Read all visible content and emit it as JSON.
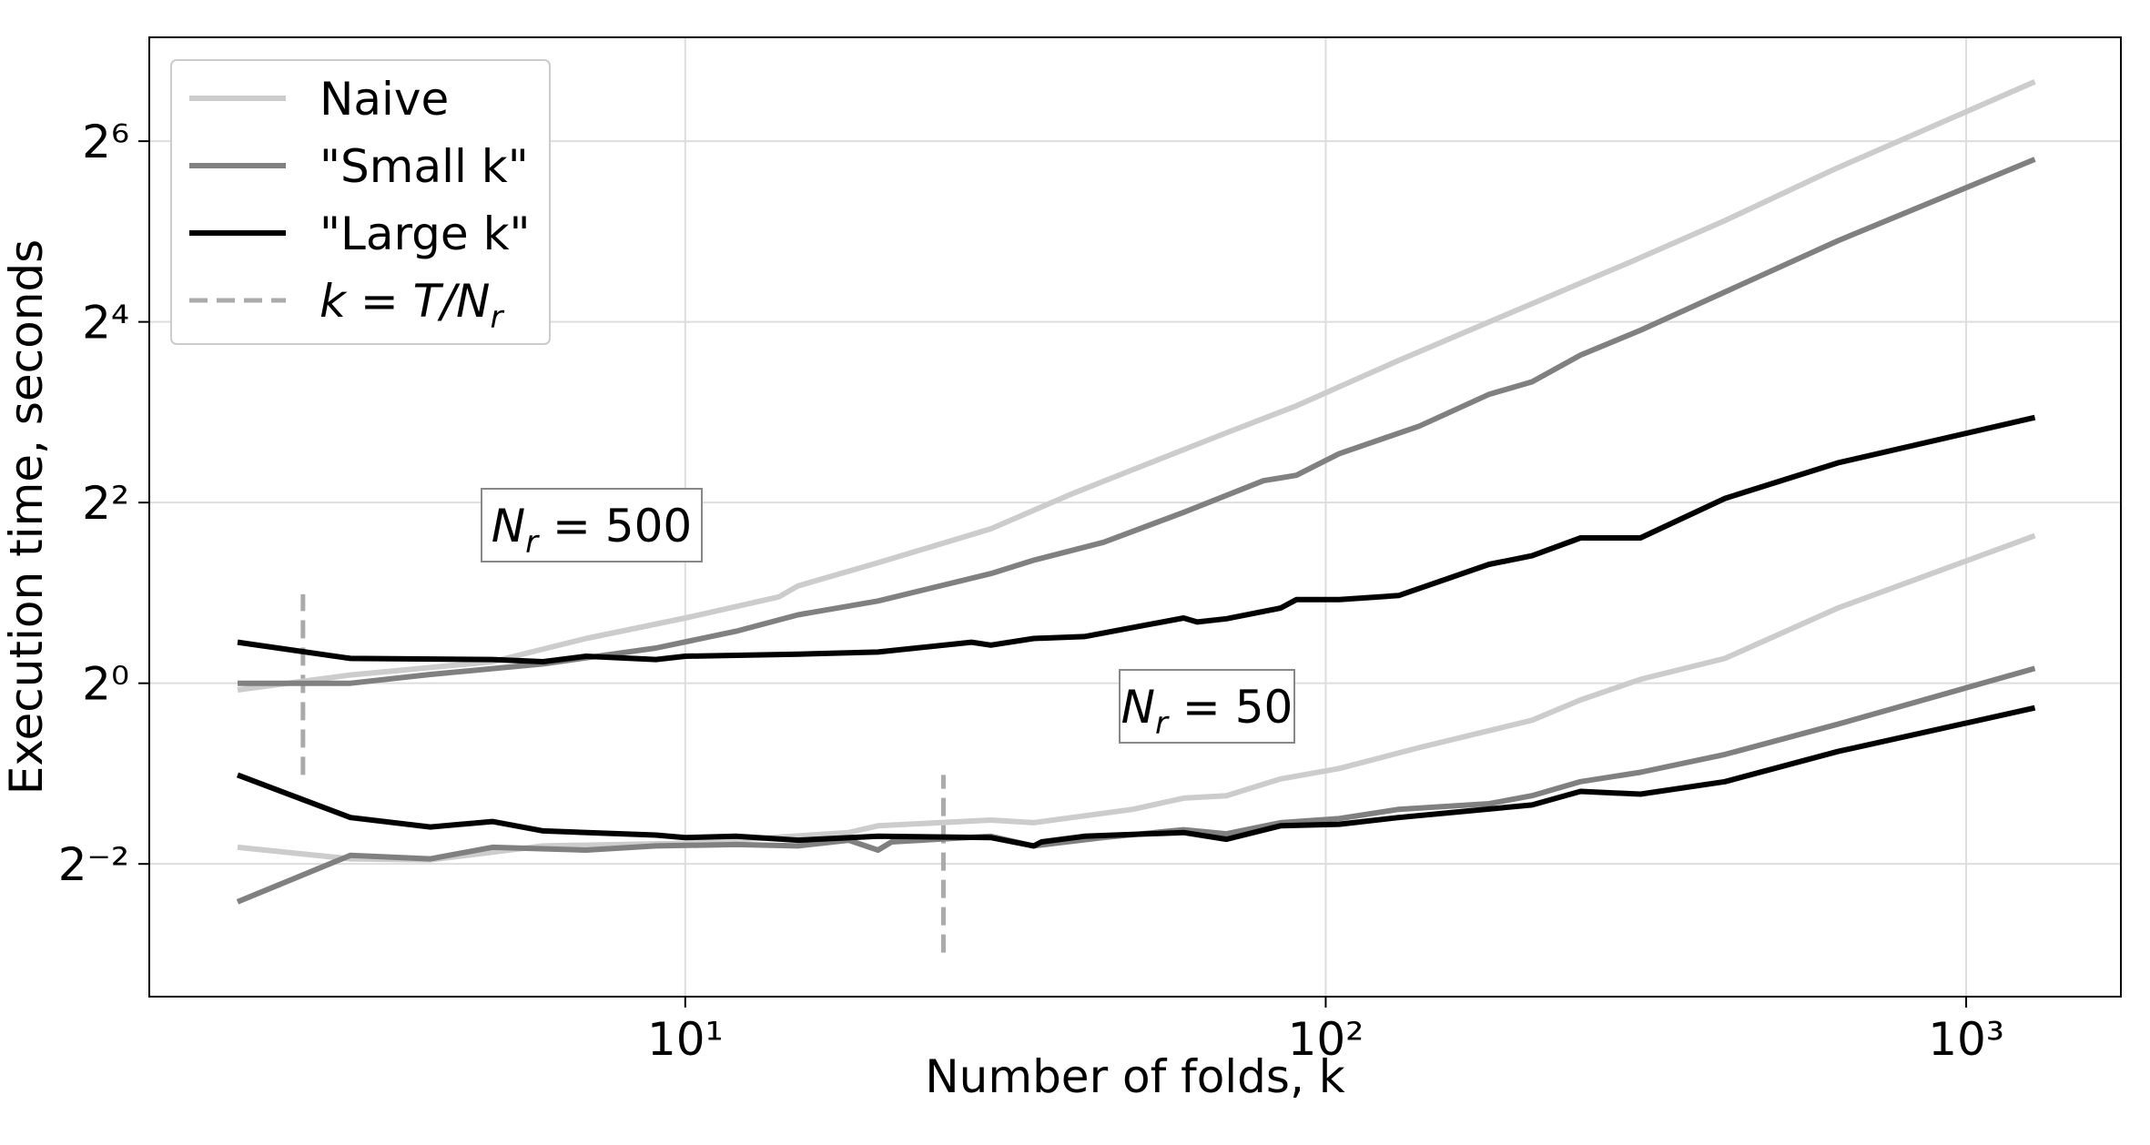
{
  "chart_data": {
    "type": "line",
    "xlabel": "Number of folds, k",
    "ylabel": "Execution time, seconds",
    "xscale": "log",
    "yscale": "log",
    "xlim": [
      1.456,
      1744
    ],
    "ylim": [
      0.0903,
      142
    ],
    "xticks": [
      {
        "value": 10,
        "label": "10¹"
      },
      {
        "value": 100,
        "label": "10²"
      },
      {
        "value": 1000,
        "label": "10³"
      }
    ],
    "yticks": [
      {
        "value": 0.25,
        "label": "2⁻²"
      },
      {
        "value": 1,
        "label": "2⁰"
      },
      {
        "value": 4,
        "label": "2²"
      },
      {
        "value": 16,
        "label": "2⁴"
      },
      {
        "value": 64,
        "label": "2⁶"
      }
    ],
    "grid": true,
    "legend": "upper left",
    "series": [
      {
        "name": "Naive",
        "color": "#cccccc",
        "x": [
          2,
          3,
          5,
          6,
          7,
          10,
          14,
          15,
          20,
          30,
          40,
          50,
          70,
          90,
          130,
          200,
          300,
          420,
          620,
          1280
        ],
        "values": [
          0.95,
          1.065,
          1.18,
          1.3,
          1.41,
          1.65,
          1.94,
          2.11,
          2.52,
          3.27,
          4.26,
          5.15,
          6.83,
          8.4,
          11.9,
          17.6,
          25.4,
          34.8,
          51.4,
          101
        ]
      },
      {
        "name": "\"Small k\"",
        "color": "#808080",
        "x": [
          2,
          3,
          4,
          6,
          9,
          12,
          15,
          20,
          30,
          35,
          45,
          60,
          80,
          90,
          105,
          140,
          180,
          210,
          250,
          310,
          630,
          1280
        ],
        "values": [
          1,
          1,
          1.07,
          1.16,
          1.31,
          1.49,
          1.69,
          1.88,
          2.32,
          2.57,
          2.95,
          3.71,
          4.73,
          4.93,
          5.82,
          7.19,
          9.18,
          10.1,
          12.4,
          15.0,
          29.8,
          55.7
        ]
      },
      {
        "name": "\"Large k\"",
        "color": "#000000",
        "x": [
          2,
          3,
          5,
          6,
          7,
          9,
          10,
          15,
          20,
          28,
          30,
          35,
          42,
          60,
          63,
          70,
          85,
          90,
          105,
          130,
          180,
          210,
          250,
          310,
          420,
          630,
          1280
        ],
        "values": [
          1.37,
          1.21,
          1.2,
          1.18,
          1.23,
          1.2,
          1.23,
          1.25,
          1.27,
          1.37,
          1.34,
          1.41,
          1.43,
          1.65,
          1.6,
          1.64,
          1.78,
          1.9,
          1.9,
          1.96,
          2.49,
          2.66,
          3.05,
          3.05,
          4.13,
          5.42,
          7.68
        ]
      },
      {
        "name": "Naive",
        "color": "#cccccc",
        "x": [
          2,
          3,
          4,
          6,
          10,
          18,
          20,
          30,
          35,
          50,
          60,
          70,
          85,
          105,
          140,
          210,
          250,
          310,
          420,
          630,
          1280
        ],
        "values": [
          0.284,
          0.26,
          0.258,
          0.287,
          0.293,
          0.318,
          0.335,
          0.35,
          0.343,
          0.38,
          0.414,
          0.422,
          0.48,
          0.52,
          0.61,
          0.753,
          0.88,
          1.03,
          1.21,
          1.78,
          3.1
        ]
      },
      {
        "name": "\"Small k\"",
        "color": "#808080",
        "x": [
          2,
          3,
          4,
          5,
          7,
          9,
          12,
          15,
          18,
          20,
          21,
          30,
          35,
          45,
          60,
          70,
          85,
          105,
          130,
          180,
          210,
          250,
          310,
          420,
          630,
          1280
        ],
        "values": [
          0.187,
          0.267,
          0.26,
          0.284,
          0.278,
          0.287,
          0.29,
          0.287,
          0.3,
          0.278,
          0.296,
          0.309,
          0.287,
          0.306,
          0.325,
          0.315,
          0.343,
          0.354,
          0.38,
          0.397,
          0.422,
          0.47,
          0.505,
          0.579,
          0.73,
          1.12
        ]
      },
      {
        "name": "\"Large k\"",
        "color": "#000000",
        "x": [
          2,
          3,
          4,
          5,
          6,
          9,
          10,
          12,
          15,
          20,
          30,
          35,
          36,
          42,
          60,
          70,
          85,
          105,
          130,
          210,
          250,
          310,
          420,
          630,
          1280
        ],
        "values": [
          0.495,
          0.357,
          0.332,
          0.346,
          0.322,
          0.312,
          0.306,
          0.309,
          0.3,
          0.309,
          0.306,
          0.287,
          0.296,
          0.309,
          0.318,
          0.302,
          0.335,
          0.339,
          0.357,
          0.393,
          0.436,
          0.427,
          0.47,
          0.592,
          0.828
        ]
      }
    ],
    "reference_lines": {
      "name": "k = T/N",
      "subscript": "r",
      "color": "#aaaaaa",
      "x": [
        2.53,
        25.3
      ],
      "y_ranges": [
        [
          0.495,
          1.98
        ],
        [
          0.1266,
          0.495
        ]
      ]
    },
    "annotations": [
      {
        "text": "N",
        "subscript": "r",
        "suffix": " = 500"
      },
      {
        "text": "N",
        "subscript": "r",
        "suffix": " = 50"
      }
    ]
  }
}
